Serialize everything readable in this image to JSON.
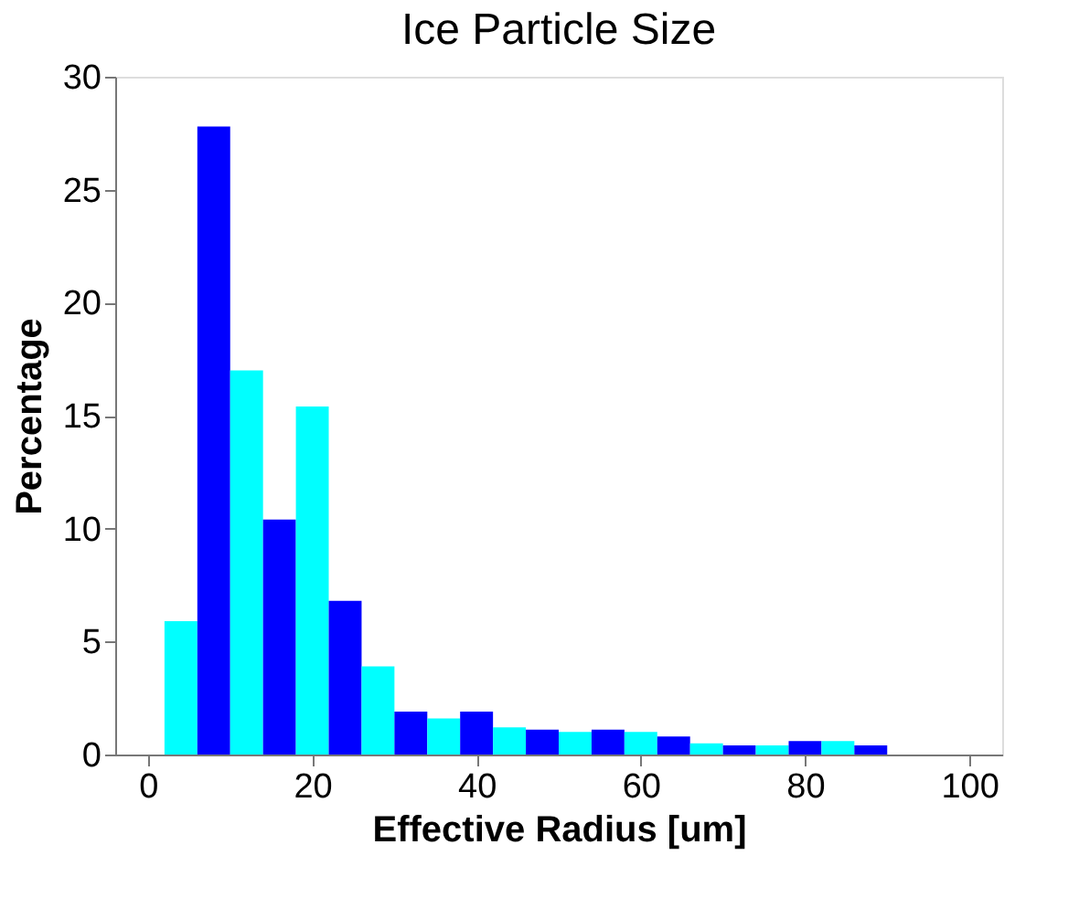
{
  "chart_data": {
    "type": "histogram",
    "title": "Ice Particle Size",
    "xlabel": "Effective Radius [um]",
    "ylabel": "Percentage",
    "bins": [
      2,
      6,
      10,
      14,
      18,
      22,
      26,
      30,
      34,
      38,
      42,
      46,
      50,
      54,
      58,
      62,
      66,
      70,
      74,
      78,
      82,
      86,
      90
    ],
    "values": [
      5.9,
      27.8,
      17.0,
      10.4,
      15.4,
      6.8,
      3.9,
      1.9,
      1.6,
      1.9,
      1.2,
      1.1,
      1.0,
      1.1,
      1.0,
      0.8,
      0.5,
      0.4,
      0.4,
      0.6,
      0.6,
      0.4
    ],
    "colors": [
      "#00ffff",
      "#0000ff",
      "#00ffff",
      "#0000ff",
      "#00ffff",
      "#0000ff",
      "#00ffff",
      "#0000ff",
      "#00ffff",
      "#0000ff",
      "#00ffff",
      "#0000ff",
      "#00ffff",
      "#0000ff",
      "#00ffff",
      "#0000ff",
      "#00ffff",
      "#0000ff",
      "#00ffff",
      "#0000ff",
      "#00ffff",
      "#0000ff"
    ],
    "xlim": [
      -4,
      104
    ],
    "xticks": [
      0,
      20,
      40,
      60,
      80,
      100
    ],
    "ylim": [
      0,
      30
    ],
    "yticks": [
      0,
      5,
      10,
      15,
      20,
      25,
      30
    ],
    "grid": false
  }
}
